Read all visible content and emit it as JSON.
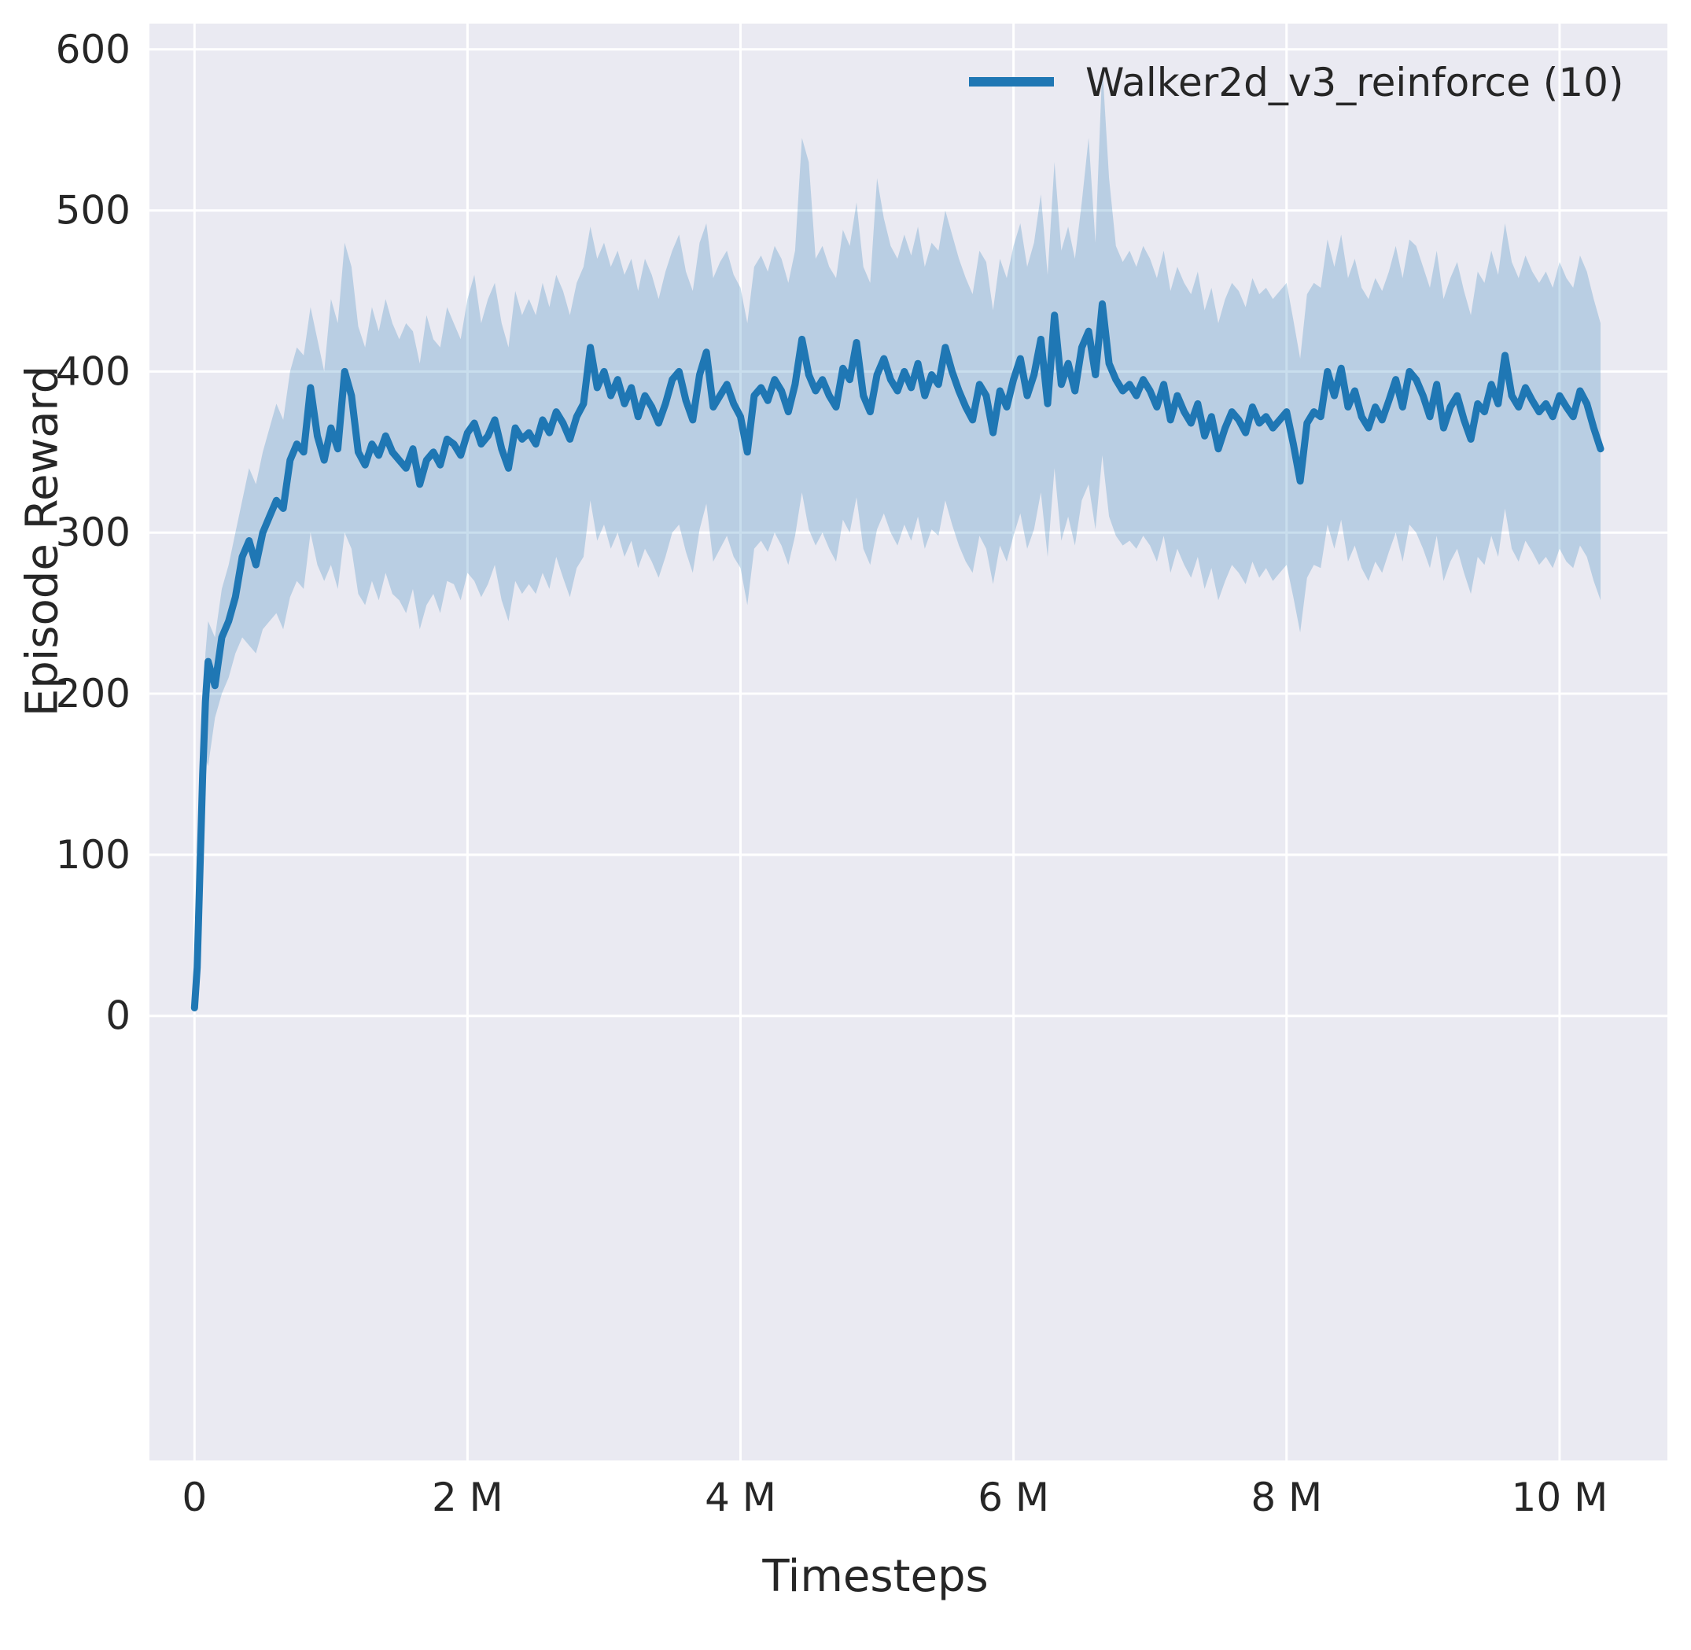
{
  "figure": {
    "plot_background": "#eaeaf2",
    "grid_color": "#ffffff",
    "text_color": "#262626",
    "line_color": "#1f77b4",
    "band_opacity": 0.24
  },
  "chart_data": {
    "type": "line",
    "title": "",
    "xlabel": "Timesteps",
    "ylabel": "Episode Reward",
    "grid": true,
    "legend_position": "upper right",
    "legend": [
      {
        "label": "Walker2d_v3_reinforce (10)",
        "color": "#1f77b4"
      }
    ],
    "x_unit": "millions of timesteps",
    "xlim": [
      -0.33,
      10.79
    ],
    "ylim": [
      -276,
      616
    ],
    "xticks": {
      "values": [
        0,
        2,
        4,
        6,
        8,
        10
      ],
      "labels": [
        "0",
        "2 M",
        "4 M",
        "6 M",
        "8 M",
        "10 M"
      ]
    },
    "yticks": {
      "values": [
        0,
        100,
        200,
        300,
        400,
        500,
        600
      ],
      "labels": [
        "0",
        "100",
        "200",
        "300",
        "400",
        "500",
        "600"
      ]
    },
    "series": [
      {
        "name": "Walker2d_v3_reinforce (10)",
        "x": [
          0,
          0.02,
          0.04,
          0.06,
          0.08,
          0.1,
          0.15,
          0.2,
          0.25,
          0.3,
          0.35,
          0.4,
          0.45,
          0.5,
          0.55,
          0.6,
          0.65,
          0.7,
          0.75,
          0.8,
          0.85,
          0.9,
          0.95,
          1.0,
          1.05,
          1.1,
          1.15,
          1.2,
          1.25,
          1.3,
          1.35,
          1.4,
          1.45,
          1.5,
          1.55,
          1.6,
          1.65,
          1.7,
          1.75,
          1.8,
          1.85,
          1.9,
          1.95,
          2.0,
          2.05,
          2.1,
          2.15,
          2.2,
          2.25,
          2.3,
          2.35,
          2.4,
          2.45,
          2.5,
          2.55,
          2.6,
          2.65,
          2.7,
          2.75,
          2.8,
          2.85,
          2.9,
          2.95,
          3.0,
          3.05,
          3.1,
          3.15,
          3.2,
          3.25,
          3.3,
          3.35,
          3.4,
          3.45,
          3.5,
          3.55,
          3.6,
          3.65,
          3.7,
          3.75,
          3.8,
          3.85,
          3.9,
          3.95,
          4.0,
          4.05,
          4.1,
          4.15,
          4.2,
          4.25,
          4.3,
          4.35,
          4.4,
          4.45,
          4.5,
          4.55,
          4.6,
          4.65,
          4.7,
          4.75,
          4.8,
          4.85,
          4.9,
          4.95,
          5.0,
          5.05,
          5.1,
          5.15,
          5.2,
          5.25,
          5.3,
          5.35,
          5.4,
          5.45,
          5.5,
          5.55,
          5.6,
          5.65,
          5.7,
          5.75,
          5.8,
          5.85,
          5.9,
          5.95,
          6.0,
          6.05,
          6.1,
          6.15,
          6.2,
          6.25,
          6.3,
          6.35,
          6.4,
          6.45,
          6.5,
          6.55,
          6.6,
          6.65,
          6.7,
          6.75,
          6.8,
          6.85,
          6.9,
          6.95,
          7.0,
          7.05,
          7.1,
          7.15,
          7.2,
          7.25,
          7.3,
          7.35,
          7.4,
          7.45,
          7.5,
          7.55,
          7.6,
          7.65,
          7.7,
          7.75,
          7.8,
          7.85,
          7.9,
          7.95,
          8.0,
          8.05,
          8.1,
          8.15,
          8.2,
          8.25,
          8.3,
          8.35,
          8.4,
          8.45,
          8.5,
          8.55,
          8.6,
          8.65,
          8.7,
          8.75,
          8.8,
          8.85,
          8.9,
          8.95,
          9.0,
          9.05,
          9.1,
          9.15,
          9.2,
          9.25,
          9.3,
          9.35,
          9.4,
          9.45,
          9.5,
          9.55,
          9.6,
          9.65,
          9.7,
          9.75,
          9.8,
          9.85,
          9.9,
          9.95,
          10.0,
          10.05,
          10.1,
          10.15,
          10.2,
          10.25,
          10.3
        ],
        "mean": [
          5,
          30,
          90,
          150,
          195,
          220,
          205,
          235,
          245,
          260,
          285,
          295,
          280,
          300,
          310,
          320,
          315,
          345,
          355,
          350,
          390,
          360,
          345,
          365,
          352,
          400,
          385,
          350,
          342,
          355,
          348,
          360,
          350,
          345,
          340,
          352,
          330,
          345,
          350,
          342,
          358,
          355,
          348,
          362,
          368,
          355,
          360,
          370,
          352,
          340,
          365,
          358,
          362,
          355,
          370,
          362,
          375,
          368,
          358,
          372,
          380,
          415,
          390,
          400,
          385,
          395,
          380,
          390,
          372,
          385,
          378,
          368,
          380,
          395,
          400,
          382,
          370,
          398,
          412,
          378,
          385,
          392,
          380,
          372,
          350,
          385,
          390,
          382,
          395,
          388,
          375,
          392,
          420,
          398,
          388,
          395,
          385,
          378,
          402,
          395,
          418,
          385,
          375,
          398,
          408,
          395,
          388,
          400,
          390,
          405,
          385,
          398,
          392,
          415,
          400,
          388,
          378,
          370,
          392,
          385,
          362,
          388,
          378,
          395,
          408,
          385,
          398,
          420,
          380,
          435,
          392,
          405,
          388,
          415,
          425,
          398,
          442,
          405,
          395,
          388,
          392,
          385,
          395,
          388,
          378,
          392,
          370,
          385,
          375,
          368,
          380,
          360,
          372,
          352,
          365,
          375,
          370,
          362,
          378,
          368,
          372,
          365,
          370,
          375,
          355,
          332,
          368,
          375,
          372,
          400,
          385,
          402,
          378,
          388,
          372,
          365,
          378,
          370,
          382,
          395,
          378,
          400,
          395,
          385,
          372,
          392,
          365,
          378,
          385,
          370,
          358,
          380,
          375,
          392,
          380,
          410,
          385,
          378,
          390,
          382,
          375,
          380,
          372,
          385,
          378,
          372,
          388,
          380,
          365,
          352
        ],
        "band_low": [
          4,
          20,
          70,
          120,
          160,
          155,
          185,
          200,
          210,
          225,
          235,
          230,
          225,
          240,
          245,
          250,
          240,
          260,
          270,
          265,
          300,
          280,
          270,
          280,
          265,
          300,
          290,
          262,
          255,
          270,
          258,
          275,
          262,
          258,
          250,
          265,
          240,
          255,
          262,
          250,
          270,
          268,
          258,
          275,
          270,
          260,
          268,
          280,
          258,
          245,
          270,
          262,
          268,
          262,
          275,
          265,
          285,
          272,
          260,
          278,
          285,
          320,
          295,
          305,
          290,
          300,
          285,
          295,
          278,
          290,
          282,
          272,
          285,
          300,
          305,
          288,
          275,
          302,
          318,
          282,
          290,
          298,
          285,
          278,
          255,
          290,
          295,
          288,
          300,
          292,
          280,
          298,
          325,
          302,
          292,
          300,
          290,
          282,
          308,
          300,
          322,
          290,
          280,
          302,
          312,
          300,
          292,
          305,
          295,
          310,
          290,
          302,
          298,
          320,
          305,
          292,
          282,
          275,
          298,
          290,
          268,
          292,
          282,
          298,
          312,
          290,
          302,
          325,
          285,
          340,
          295,
          310,
          292,
          320,
          330,
          302,
          348,
          310,
          298,
          292,
          295,
          290,
          298,
          292,
          282,
          298,
          275,
          290,
          280,
          272,
          285,
          265,
          278,
          258,
          270,
          280,
          275,
          268,
          282,
          272,
          278,
          270,
          275,
          280,
          260,
          238,
          272,
          280,
          278,
          305,
          290,
          308,
          282,
          292,
          278,
          270,
          282,
          275,
          288,
          300,
          282,
          305,
          300,
          290,
          278,
          298,
          270,
          282,
          290,
          275,
          262,
          285,
          280,
          298,
          285,
          315,
          290,
          282,
          295,
          288,
          280,
          285,
          278,
          290,
          282,
          278,
          292,
          285,
          270,
          258
        ],
        "band_high": [
          6,
          45,
          115,
          180,
          225,
          245,
          235,
          265,
          280,
          300,
          320,
          340,
          330,
          350,
          365,
          380,
          370,
          400,
          415,
          410,
          440,
          420,
          400,
          445,
          430,
          480,
          465,
          428,
          415,
          440,
          425,
          445,
          430,
          420,
          430,
          425,
          405,
          435,
          420,
          415,
          440,
          430,
          420,
          445,
          460,
          430,
          445,
          455,
          430,
          415,
          450,
          435,
          445,
          435,
          455,
          440,
          460,
          450,
          435,
          455,
          465,
          490,
          470,
          480,
          465,
          475,
          460,
          470,
          450,
          470,
          460,
          445,
          462,
          475,
          485,
          462,
          450,
          480,
          492,
          458,
          468,
          475,
          460,
          452,
          430,
          465,
          472,
          462,
          478,
          470,
          455,
          475,
          545,
          530,
          470,
          478,
          465,
          458,
          488,
          478,
          505,
          465,
          455,
          520,
          495,
          478,
          470,
          485,
          472,
          490,
          465,
          480,
          475,
          500,
          485,
          470,
          458,
          448,
          475,
          468,
          438,
          470,
          458,
          478,
          492,
          465,
          480,
          510,
          460,
          530,
          475,
          490,
          470,
          505,
          545,
          480,
          590,
          520,
          478,
          468,
          475,
          465,
          478,
          470,
          458,
          475,
          450,
          465,
          455,
          448,
          462,
          438,
          452,
          430,
          445,
          455,
          450,
          440,
          458,
          448,
          452,
          445,
          450,
          455,
          432,
          408,
          448,
          455,
          452,
          482,
          465,
          485,
          458,
          470,
          452,
          445,
          458,
          450,
          462,
          478,
          458,
          482,
          478,
          465,
          452,
          475,
          445,
          458,
          468,
          450,
          435,
          462,
          455,
          475,
          460,
          492,
          468,
          458,
          472,
          462,
          455,
          462,
          452,
          468,
          458,
          452,
          472,
          462,
          445,
          430
        ]
      }
    ]
  }
}
